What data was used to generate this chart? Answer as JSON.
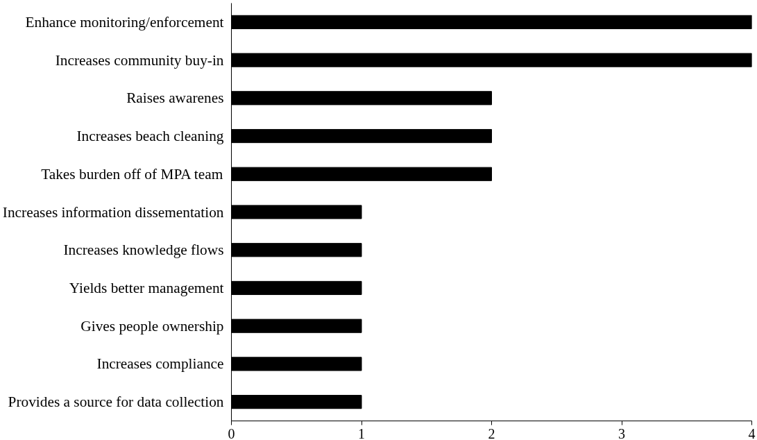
{
  "chart_data": {
    "type": "bar",
    "orientation": "horizontal",
    "categories": [
      "Enhance monitoring/enforcement",
      "Increases community buy-in",
      "Raises awarenes",
      "Increases beach cleaning",
      "Takes burden off of MPA team",
      "Increases information dissementation",
      "Increases knowledge flows",
      "Yields better management",
      "Gives people ownership",
      "Increases compliance",
      "Provides a source for data collection"
    ],
    "values": [
      4,
      4,
      2,
      2,
      2,
      1,
      1,
      1,
      1,
      1,
      1
    ],
    "color": "#000000",
    "xlim": [
      0,
      4
    ],
    "xticks": [
      0,
      1,
      2,
      3,
      4
    ]
  }
}
